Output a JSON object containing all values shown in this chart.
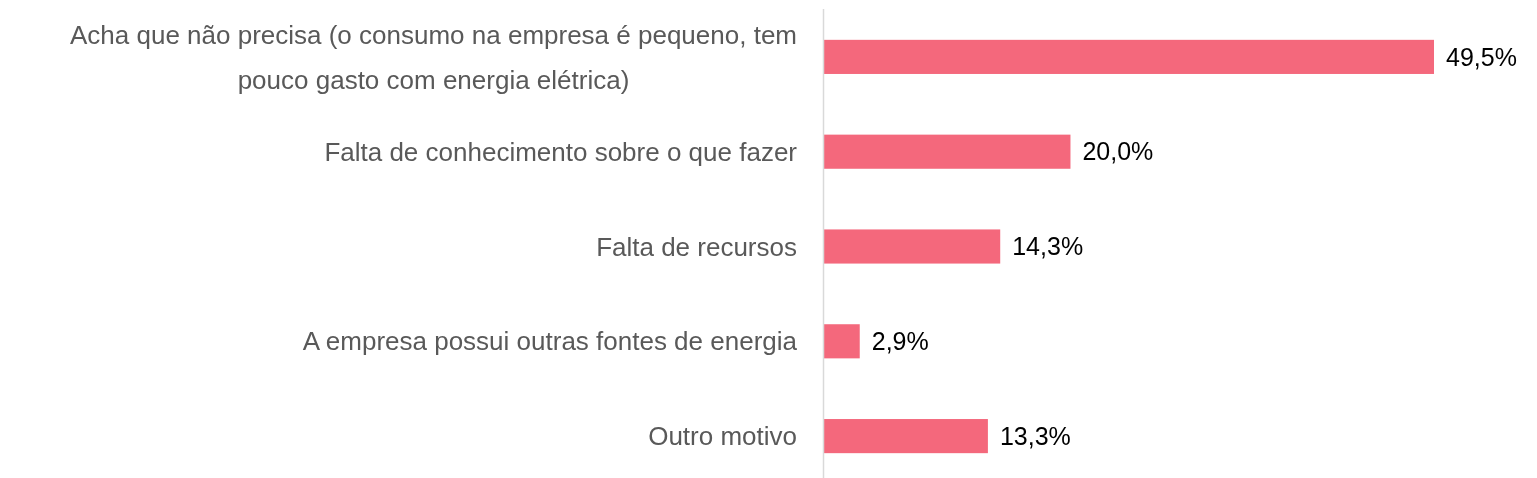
{
  "chart_data": {
    "type": "bar",
    "orientation": "horizontal",
    "categories": [
      "Acha que não precisa (o consumo na empresa é pequeno, tem pouco gasto com energia elétrica)",
      "Falta de conhecimento sobre o que fazer",
      "Falta de recursos",
      "A empresa possui outras fontes de energia",
      "Outro motivo"
    ],
    "values": [
      49.5,
      20.0,
      14.3,
      2.9,
      13.3
    ],
    "color": "#f4687c",
    "value_labels": [
      "49,5%",
      "20,0%",
      "14,3%",
      "2,9%",
      "13,3%"
    ]
  }
}
